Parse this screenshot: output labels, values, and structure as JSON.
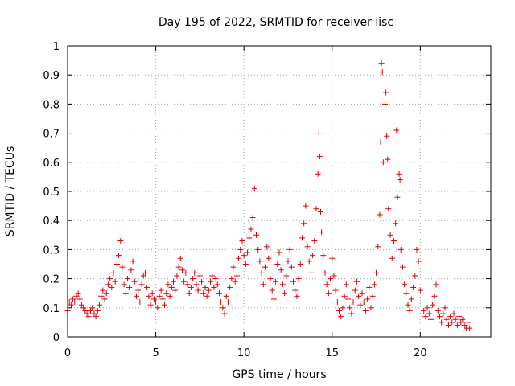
{
  "chart_data": {
    "type": "scatter",
    "title": "Day 195 of 2022, SRMTID for receiver iisc",
    "xlabel": "GPS time / hours",
    "ylabel": "SRMTID / TECUs",
    "xlim": [
      0,
      24
    ],
    "ylim": [
      0,
      1
    ],
    "xticks": [
      0,
      5,
      10,
      15,
      20
    ],
    "xtick_labels": [
      "0",
      "5",
      "10",
      "15",
      "20"
    ],
    "yticks": [
      0,
      0.1,
      0.2,
      0.3,
      0.4,
      0.5,
      0.6,
      0.7,
      0.8,
      0.9,
      1
    ],
    "ytick_labels": [
      "0",
      "0.1",
      "0.2",
      "0.3",
      "0.4",
      "0.5",
      "0.6",
      "0.7",
      "0.8",
      "0.9",
      "1"
    ],
    "grid": true,
    "marker": "+",
    "series": [
      {
        "name": "SRMTID",
        "color": "#e00000",
        "points": [
          [
            0.0,
            0.09
          ],
          [
            0.1,
            0.12
          ],
          [
            0.2,
            0.11
          ],
          [
            0.3,
            0.13
          ],
          [
            0.4,
            0.12
          ],
          [
            0.5,
            0.14
          ],
          [
            0.6,
            0.15
          ],
          [
            0.7,
            0.13
          ],
          [
            0.8,
            0.11
          ],
          [
            0.9,
            0.1
          ],
          [
            1.0,
            0.09
          ],
          [
            1.1,
            0.08
          ],
          [
            1.2,
            0.07
          ],
          [
            1.3,
            0.09
          ],
          [
            1.4,
            0.1
          ],
          [
            1.5,
            0.08
          ],
          [
            1.6,
            0.07
          ],
          [
            1.7,
            0.09
          ],
          [
            1.8,
            0.11
          ],
          [
            1.9,
            0.14
          ],
          [
            2.0,
            0.16
          ],
          [
            2.1,
            0.13
          ],
          [
            2.2,
            0.15
          ],
          [
            2.3,
            0.18
          ],
          [
            2.4,
            0.2
          ],
          [
            2.5,
            0.17
          ],
          [
            2.6,
            0.22
          ],
          [
            2.7,
            0.19
          ],
          [
            2.8,
            0.25
          ],
          [
            2.9,
            0.28
          ],
          [
            3.0,
            0.33
          ],
          [
            3.1,
            0.24
          ],
          [
            3.2,
            0.18
          ],
          [
            3.3,
            0.15
          ],
          [
            3.4,
            0.2
          ],
          [
            3.5,
            0.17
          ],
          [
            3.6,
            0.23
          ],
          [
            3.7,
            0.26
          ],
          [
            3.8,
            0.19
          ],
          [
            3.9,
            0.14
          ],
          [
            4.0,
            0.16
          ],
          [
            4.1,
            0.12
          ],
          [
            4.2,
            0.18
          ],
          [
            4.3,
            0.21
          ],
          [
            4.4,
            0.22
          ],
          [
            4.5,
            0.17
          ],
          [
            4.6,
            0.14
          ],
          [
            4.7,
            0.11
          ],
          [
            4.8,
            0.15
          ],
          [
            4.9,
            0.13
          ],
          [
            5.0,
            0.12
          ],
          [
            5.1,
            0.1
          ],
          [
            5.2,
            0.14
          ],
          [
            5.3,
            0.16
          ],
          [
            5.4,
            0.13
          ],
          [
            5.5,
            0.11
          ],
          [
            5.6,
            0.15
          ],
          [
            5.7,
            0.18
          ],
          [
            5.8,
            0.14
          ],
          [
            5.9,
            0.17
          ],
          [
            6.0,
            0.19
          ],
          [
            6.1,
            0.16
          ],
          [
            6.2,
            0.21
          ],
          [
            6.3,
            0.24
          ],
          [
            6.4,
            0.27
          ],
          [
            6.5,
            0.23
          ],
          [
            6.6,
            0.19
          ],
          [
            6.7,
            0.22
          ],
          [
            6.8,
            0.18
          ],
          [
            6.9,
            0.15
          ],
          [
            7.0,
            0.17
          ],
          [
            7.1,
            0.2
          ],
          [
            7.2,
            0.22
          ],
          [
            7.3,
            0.18
          ],
          [
            7.4,
            0.16
          ],
          [
            7.5,
            0.21
          ],
          [
            7.6,
            0.19
          ],
          [
            7.7,
            0.15
          ],
          [
            7.8,
            0.17
          ],
          [
            7.9,
            0.14
          ],
          [
            8.0,
            0.16
          ],
          [
            8.1,
            0.19
          ],
          [
            8.2,
            0.21
          ],
          [
            8.3,
            0.17
          ],
          [
            8.4,
            0.2
          ],
          [
            8.5,
            0.18
          ],
          [
            8.6,
            0.15
          ],
          [
            8.7,
            0.12
          ],
          [
            8.8,
            0.1
          ],
          [
            8.9,
            0.08
          ],
          [
            9.0,
            0.14
          ],
          [
            9.1,
            0.12
          ],
          [
            9.2,
            0.17
          ],
          [
            9.3,
            0.2
          ],
          [
            9.4,
            0.24
          ],
          [
            9.5,
            0.19
          ],
          [
            9.6,
            0.21
          ],
          [
            9.7,
            0.27
          ],
          [
            9.8,
            0.3
          ],
          [
            9.9,
            0.33
          ],
          [
            10.0,
            0.28
          ],
          [
            10.1,
            0.25
          ],
          [
            10.2,
            0.29
          ],
          [
            10.3,
            0.34
          ],
          [
            10.4,
            0.37
          ],
          [
            10.5,
            0.41
          ],
          [
            10.6,
            0.51
          ],
          [
            10.7,
            0.35
          ],
          [
            10.8,
            0.3
          ],
          [
            10.9,
            0.26
          ],
          [
            11.0,
            0.22
          ],
          [
            11.1,
            0.18
          ],
          [
            11.2,
            0.24
          ],
          [
            11.3,
            0.31
          ],
          [
            11.4,
            0.27
          ],
          [
            11.5,
            0.2
          ],
          [
            11.6,
            0.16
          ],
          [
            11.7,
            0.13
          ],
          [
            11.8,
            0.19
          ],
          [
            11.9,
            0.25
          ],
          [
            12.0,
            0.29
          ],
          [
            12.1,
            0.23
          ],
          [
            12.2,
            0.18
          ],
          [
            12.3,
            0.15
          ],
          [
            12.4,
            0.21
          ],
          [
            12.5,
            0.26
          ],
          [
            12.6,
            0.3
          ],
          [
            12.7,
            0.24
          ],
          [
            12.8,
            0.19
          ],
          [
            12.9,
            0.16
          ],
          [
            13.0,
            0.14
          ],
          [
            13.1,
            0.2
          ],
          [
            13.2,
            0.25
          ],
          [
            13.3,
            0.34
          ],
          [
            13.4,
            0.39
          ],
          [
            13.5,
            0.45
          ],
          [
            13.6,
            0.31
          ],
          [
            13.7,
            0.26
          ],
          [
            13.8,
            0.22
          ],
          [
            13.9,
            0.28
          ],
          [
            14.0,
            0.33
          ],
          [
            14.1,
            0.44
          ],
          [
            14.2,
            0.56
          ],
          [
            14.25,
            0.7
          ],
          [
            14.3,
            0.62
          ],
          [
            14.35,
            0.43
          ],
          [
            14.4,
            0.36
          ],
          [
            14.5,
            0.28
          ],
          [
            14.6,
            0.22
          ],
          [
            14.7,
            0.18
          ],
          [
            14.8,
            0.15
          ],
          [
            14.9,
            0.2
          ],
          [
            15.0,
            0.27
          ],
          [
            15.1,
            0.21
          ],
          [
            15.2,
            0.16
          ],
          [
            15.3,
            0.12
          ],
          [
            15.4,
            0.09
          ],
          [
            15.5,
            0.07
          ],
          [
            15.6,
            0.1
          ],
          [
            15.7,
            0.14
          ],
          [
            15.8,
            0.18
          ],
          [
            15.9,
            0.13
          ],
          [
            16.0,
            0.1
          ],
          [
            16.1,
            0.08
          ],
          [
            16.2,
            0.12
          ],
          [
            16.3,
            0.16
          ],
          [
            16.4,
            0.19
          ],
          [
            16.5,
            0.14
          ],
          [
            16.6,
            0.11
          ],
          [
            16.7,
            0.15
          ],
          [
            16.8,
            0.12
          ],
          [
            16.9,
            0.09
          ],
          [
            17.0,
            0.13
          ],
          [
            17.1,
            0.17
          ],
          [
            17.2,
            0.1
          ],
          [
            17.3,
            0.14
          ],
          [
            17.4,
            0.18
          ],
          [
            17.5,
            0.22
          ],
          [
            17.6,
            0.31
          ],
          [
            17.7,
            0.42
          ],
          [
            17.75,
            0.67
          ],
          [
            17.8,
            0.94
          ],
          [
            17.85,
            0.91
          ],
          [
            17.9,
            0.6
          ],
          [
            18.0,
            0.8
          ],
          [
            18.05,
            0.84
          ],
          [
            18.1,
            0.69
          ],
          [
            18.15,
            0.61
          ],
          [
            18.2,
            0.44
          ],
          [
            18.3,
            0.35
          ],
          [
            18.4,
            0.27
          ],
          [
            18.5,
            0.33
          ],
          [
            18.6,
            0.39
          ],
          [
            18.65,
            0.71
          ],
          [
            18.7,
            0.48
          ],
          [
            18.8,
            0.56
          ],
          [
            18.85,
            0.54
          ],
          [
            18.9,
            0.3
          ],
          [
            19.0,
            0.24
          ],
          [
            19.1,
            0.18
          ],
          [
            19.2,
            0.15
          ],
          [
            19.3,
            0.11
          ],
          [
            19.4,
            0.09
          ],
          [
            19.5,
            0.13
          ],
          [
            19.6,
            0.17
          ],
          [
            19.7,
            0.21
          ],
          [
            19.8,
            0.3
          ],
          [
            19.9,
            0.26
          ],
          [
            20.0,
            0.16
          ],
          [
            20.1,
            0.12
          ],
          [
            20.2,
            0.09
          ],
          [
            20.3,
            0.07
          ],
          [
            20.4,
            0.1
          ],
          [
            20.5,
            0.08
          ],
          [
            20.6,
            0.06
          ],
          [
            20.7,
            0.11
          ],
          [
            20.8,
            0.14
          ],
          [
            20.9,
            0.18
          ],
          [
            21.0,
            0.09
          ],
          [
            21.1,
            0.07
          ],
          [
            21.2,
            0.05
          ],
          [
            21.3,
            0.08
          ],
          [
            21.4,
            0.1
          ],
          [
            21.5,
            0.06
          ],
          [
            21.6,
            0.04
          ],
          [
            21.7,
            0.07
          ],
          [
            21.8,
            0.05
          ],
          [
            21.9,
            0.08
          ],
          [
            22.0,
            0.06
          ],
          [
            22.1,
            0.04
          ],
          [
            22.2,
            0.07
          ],
          [
            22.3,
            0.05
          ],
          [
            22.4,
            0.06
          ],
          [
            22.5,
            0.04
          ],
          [
            22.6,
            0.03
          ],
          [
            22.7,
            0.05
          ],
          [
            22.8,
            0.03
          ]
        ]
      }
    ]
  }
}
